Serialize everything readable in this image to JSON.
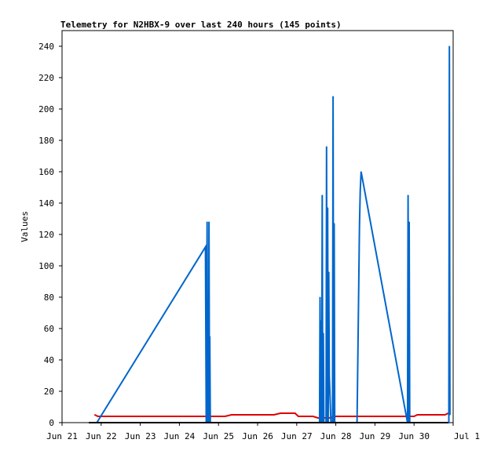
{
  "chart_data": {
    "type": "line",
    "title": "Telemetry for N2HBX-9 over last 240 hours (145 points)",
    "xlabel": "",
    "ylabel": "Values",
    "xlim": [
      "2021-06-21",
      "2021-07-01"
    ],
    "ylim": [
      0,
      250
    ],
    "x_ticks": [
      "Jun 21",
      "Jun 22",
      "Jun 23",
      "Jun 24",
      "Jun 25",
      "Jun 26",
      "Jun 27",
      "Jun 28",
      "Jun 29",
      "Jun 30",
      "Jul 1"
    ],
    "y_ticks": [
      0,
      20,
      40,
      60,
      80,
      100,
      120,
      140,
      160,
      180,
      200,
      220,
      240
    ],
    "grid": false,
    "legend": "none",
    "series": [
      {
        "color": "#0066cc",
        "points": [
          [
            "2021-06-21T21:20",
            0
          ],
          [
            "2021-06-24T16:00",
            112
          ],
          [
            "2021-06-24T16:30",
            0
          ],
          [
            "2021-06-24T17:00",
            128
          ],
          [
            "2021-06-24T17:20",
            0
          ],
          [
            "2021-06-24T17:40",
            32
          ],
          [
            "2021-06-24T18:00",
            0
          ],
          [
            "2021-06-24T18:10",
            128
          ],
          [
            "2021-06-24T18:30",
            0
          ],
          [
            "2021-06-24T18:40",
            55
          ],
          [
            "2021-06-24T19:00",
            0
          ],
          [
            "2021-06-27T14:00",
            0
          ],
          [
            "2021-06-27T14:20",
            80
          ],
          [
            "2021-06-27T14:40",
            0
          ],
          [
            "2021-06-27T15:00",
            65
          ],
          [
            "2021-06-27T15:20",
            0
          ],
          [
            "2021-06-27T15:40",
            145
          ],
          [
            "2021-06-27T16:00",
            0
          ],
          [
            "2021-06-27T16:20",
            57
          ],
          [
            "2021-06-27T16:40",
            0
          ],
          [
            "2021-06-27T18:00",
            0
          ],
          [
            "2021-06-27T18:20",
            176
          ],
          [
            "2021-06-27T18:40",
            0
          ],
          [
            "2021-06-27T19:00",
            137
          ],
          [
            "2021-06-27T19:20",
            0
          ],
          [
            "2021-06-27T19:40",
            96
          ],
          [
            "2021-06-27T20:00",
            30
          ],
          [
            "2021-06-27T21:00",
            0
          ],
          [
            "2021-06-27T22:00",
            0
          ],
          [
            "2021-06-27T22:20",
            208
          ],
          [
            "2021-06-27T22:40",
            0
          ],
          [
            "2021-06-27T23:00",
            127
          ],
          [
            "2021-06-27T23:20",
            0
          ],
          [
            "2021-06-28T13:00",
            0
          ],
          [
            "2021-06-28T13:30",
            40
          ],
          [
            "2021-06-28T14:00",
            80
          ],
          [
            "2021-06-28T14:30",
            125
          ],
          [
            "2021-06-28T15:00",
            148
          ],
          [
            "2021-06-28T15:30",
            160
          ],
          [
            "2021-06-29T20:00",
            0
          ],
          [
            "2021-06-29T20:20",
            145
          ],
          [
            "2021-06-29T20:40",
            0
          ],
          [
            "2021-06-29T21:00",
            128
          ],
          [
            "2021-06-29T21:20",
            0
          ],
          [
            "2021-06-30T21:20",
            0
          ],
          [
            "2021-06-30T21:40",
            240
          ],
          [
            "2021-06-30T22:00",
            5
          ]
        ]
      },
      {
        "color": "#dd0000",
        "points": [
          [
            "2021-06-21T20:00",
            5
          ],
          [
            "2021-06-21T22:00",
            4
          ],
          [
            "2021-06-24T12:00",
            4
          ],
          [
            "2021-06-25T04:00",
            4
          ],
          [
            "2021-06-25T08:00",
            5
          ],
          [
            "2021-06-26T10:00",
            5
          ],
          [
            "2021-06-26T14:00",
            6
          ],
          [
            "2021-06-26T23:00",
            6
          ],
          [
            "2021-06-27T01:00",
            4
          ],
          [
            "2021-06-27T10:00",
            4
          ],
          [
            "2021-06-27T13:00",
            3
          ],
          [
            "2021-06-27T20:00",
            3
          ],
          [
            "2021-06-28T00:00",
            4
          ],
          [
            "2021-06-30T00:00",
            4
          ],
          [
            "2021-06-30T02:00",
            5
          ],
          [
            "2021-06-30T19:00",
            5
          ],
          [
            "2021-06-30T21:00",
            6
          ],
          [
            "2021-06-30T22:00",
            6
          ]
        ]
      }
    ]
  }
}
